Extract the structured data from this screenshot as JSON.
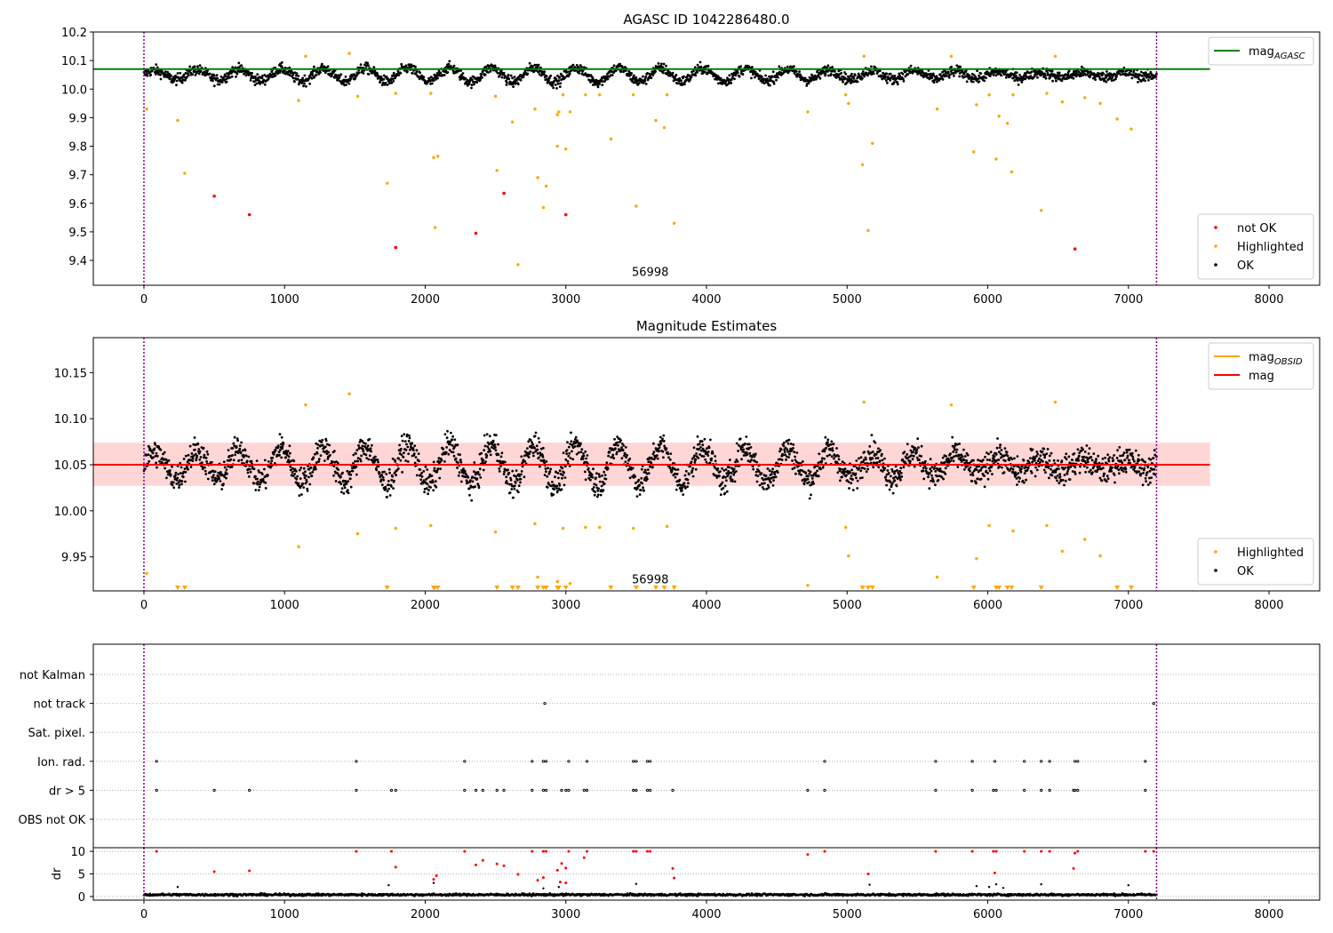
{
  "colors": {
    "ok": "#000000",
    "not_ok": "#ff0000",
    "highlighted": "#ffa500",
    "agasc": "#008000",
    "obsid": "#ffa500",
    "mag": "#ff0000",
    "band": "#ffcccc",
    "obsid_boundary": "#800080",
    "grid": "#b0b0b0"
  },
  "chart_data": [
    {
      "type": "scatter",
      "title": "AGASC ID 1042286480.0",
      "xlabel": "",
      "ylabel": "",
      "xlim": [
        -360,
        8360
      ],
      "ylim": [
        9.313,
        10.2
      ],
      "x_ticks": [
        0,
        1000,
        2000,
        3000,
        4000,
        5000,
        6000,
        7000,
        8000
      ],
      "y_ticks": [
        9.4,
        9.5,
        9.6,
        9.7,
        9.8,
        9.9,
        10.0,
        10.1,
        10.2
      ],
      "y_tick_labels": [
        "9.4",
        "9.5",
        "9.6",
        "9.7",
        "9.8",
        "9.9",
        "10.0",
        "10.1",
        "10.2"
      ],
      "obsid_boundaries": [
        0,
        7200
      ],
      "obsid_labels": [
        {
          "x": 3600,
          "y": 9.345,
          "text": "56998"
        }
      ],
      "ok_series": {
        "name": "OK",
        "x_range": [
          0,
          7200
        ],
        "baseline": 10.05,
        "scatter": 0.022,
        "oscillation": 0.025,
        "period": 300,
        "count": 2400
      },
      "lines": [
        {
          "name": "mag",
          "subscript": "AGASC",
          "y": 10.07,
          "x_range": [
            -360,
            7580
          ]
        }
      ],
      "band": null,
      "legends": [
        {
          "position": "upper right",
          "entries": [
            {
              "kind": "line",
              "label": "mag",
              "subscript": "AGASC"
            }
          ]
        },
        {
          "position": "lower right",
          "entries": [
            {
              "kind": "dot",
              "label": "not OK"
            },
            {
              "kind": "dot",
              "label": "Highlighted"
            },
            {
              "kind": "dot",
              "label": "OK"
            }
          ]
        }
      ],
      "not_ok_points": [
        [
          500,
          9.625
        ],
        [
          750,
          9.56
        ],
        [
          1790,
          9.445
        ],
        [
          2360,
          9.495
        ],
        [
          2560,
          9.635
        ],
        [
          3000,
          9.56
        ],
        [
          6620,
          9.44
        ]
      ],
      "highlighted_points": [
        [
          20,
          9.93
        ],
        [
          240,
          9.89
        ],
        [
          290,
          9.705
        ],
        [
          1100,
          9.96
        ],
        [
          1150,
          10.115
        ],
        [
          1460,
          10.125
        ],
        [
          1520,
          9.975
        ],
        [
          1730,
          9.67
        ],
        [
          1790,
          9.985
        ],
        [
          2040,
          9.985
        ],
        [
          2060,
          9.76
        ],
        [
          2070,
          9.515
        ],
        [
          2090,
          9.765
        ],
        [
          2500,
          9.975
        ],
        [
          2510,
          9.715
        ],
        [
          2620,
          9.885
        ],
        [
          2660,
          9.385
        ],
        [
          2780,
          9.93
        ],
        [
          2800,
          9.69
        ],
        [
          2840,
          9.585
        ],
        [
          2860,
          9.66
        ],
        [
          2940,
          9.8
        ],
        [
          2940,
          9.91
        ],
        [
          2950,
          9.92
        ],
        [
          2980,
          9.98
        ],
        [
          3000,
          9.79
        ],
        [
          3030,
          9.92
        ],
        [
          3140,
          9.98
        ],
        [
          3240,
          9.98
        ],
        [
          3320,
          9.825
        ],
        [
          3480,
          9.98
        ],
        [
          3500,
          9.59
        ],
        [
          3640,
          9.89
        ],
        [
          3700,
          9.865
        ],
        [
          3720,
          9.98
        ],
        [
          3770,
          9.53
        ],
        [
          4720,
          9.92
        ],
        [
          4990,
          9.98
        ],
        [
          5010,
          9.95
        ],
        [
          5110,
          9.735
        ],
        [
          5120,
          10.115
        ],
        [
          5150,
          9.505
        ],
        [
          5180,
          9.81
        ],
        [
          5640,
          9.93
        ],
        [
          5740,
          10.115
        ],
        [
          5900,
          9.78
        ],
        [
          5920,
          9.945
        ],
        [
          6010,
          9.98
        ],
        [
          6060,
          9.755
        ],
        [
          6080,
          9.905
        ],
        [
          6140,
          9.88
        ],
        [
          6170,
          9.71
        ],
        [
          6180,
          9.98
        ],
        [
          6380,
          9.575
        ],
        [
          6420,
          9.985
        ],
        [
          6480,
          10.115
        ],
        [
          6530,
          9.955
        ],
        [
          6690,
          9.97
        ],
        [
          6800,
          9.95
        ],
        [
          6920,
          9.895
        ],
        [
          7020,
          9.86
        ]
      ]
    },
    {
      "type": "scatter",
      "title": "Magnitude Estimates",
      "xlabel": "",
      "ylabel": "",
      "xlim": [
        -360,
        8360
      ],
      "ylim": [
        9.913,
        10.188
      ],
      "x_ticks": [
        0,
        1000,
        2000,
        3000,
        4000,
        5000,
        6000,
        7000,
        8000
      ],
      "y_ticks": [
        9.95,
        10.0,
        10.05,
        10.1,
        10.15
      ],
      "y_tick_labels": [
        "9.95",
        "10.00",
        "10.05",
        "10.10",
        "10.15"
      ],
      "obsid_boundaries": [
        0,
        7200
      ],
      "obsid_labels": [
        {
          "x": 3600,
          "y": 9.921,
          "text": "56998"
        }
      ],
      "ok_series": {
        "name": "OK",
        "x_range": [
          0,
          7200
        ],
        "baseline": 10.05,
        "scatter": 0.018,
        "oscillation": 0.022,
        "period": 300,
        "count": 2600
      },
      "lines": [
        {
          "name": "mag",
          "subscript": "OBSID",
          "y": 10.05,
          "x_range": [
            -360,
            7200
          ],
          "color_key": "obsid"
        },
        {
          "name": "mag",
          "subscript": "",
          "y": 10.05,
          "x_range": [
            -360,
            7580
          ],
          "color_key": "mag"
        }
      ],
      "band": {
        "y_range": [
          10.027,
          10.074
        ],
        "x_range": [
          -360,
          7580
        ]
      },
      "legends": [
        {
          "position": "upper right",
          "entries": [
            {
              "kind": "line",
              "label": "mag",
              "subscript": "OBSID",
              "color_key": "obsid"
            },
            {
              "kind": "line",
              "label": "mag",
              "subscript": "",
              "color_key": "mag"
            }
          ]
        },
        {
          "position": "lower right",
          "entries": [
            {
              "kind": "dot",
              "label": "Highlighted"
            },
            {
              "kind": "dot",
              "label": "OK"
            }
          ]
        }
      ],
      "not_ok_points": [],
      "highlighted_points": [
        [
          20,
          9.932
        ],
        [
          1100,
          9.961
        ],
        [
          1150,
          10.115
        ],
        [
          1460,
          10.127
        ],
        [
          1520,
          9.975
        ],
        [
          1790,
          9.981
        ],
        [
          2040,
          9.984
        ],
        [
          2500,
          9.977
        ],
        [
          2780,
          9.986
        ],
        [
          2800,
          9.928
        ],
        [
          2940,
          9.923
        ],
        [
          2980,
          9.981
        ],
        [
          3030,
          9.921
        ],
        [
          3140,
          9.982
        ],
        [
          3240,
          9.982
        ],
        [
          3480,
          9.981
        ],
        [
          3720,
          9.983
        ],
        [
          4720,
          9.919
        ],
        [
          4990,
          9.982
        ],
        [
          5010,
          9.951
        ],
        [
          5120,
          10.118
        ],
        [
          5640,
          9.928
        ],
        [
          5740,
          10.115
        ],
        [
          5920,
          9.948
        ],
        [
          6010,
          9.984
        ],
        [
          6180,
          9.978
        ],
        [
          6420,
          9.984
        ],
        [
          6480,
          10.118
        ],
        [
          6530,
          9.956
        ],
        [
          6690,
          9.969
        ],
        [
          6800,
          9.951
        ]
      ],
      "clipped_below": [
        240,
        290,
        1730,
        2060,
        2070,
        2090,
        2510,
        2620,
        2660,
        2800,
        2840,
        2860,
        2940,
        2950,
        3000,
        3320,
        3500,
        3640,
        3700,
        3770,
        5110,
        5150,
        5180,
        5900,
        6060,
        6080,
        6140,
        6170,
        6380,
        6920,
        7020
      ]
    }
  ],
  "flags_panel": {
    "categories": [
      "not Kalman",
      "not track",
      "Sat. pixel.",
      "Ion. rad.",
      "dr > 5",
      "OBS not OK"
    ],
    "x_ticks": [
      0,
      1000,
      2000,
      3000,
      4000,
      5000,
      6000,
      7000,
      8000
    ],
    "flags": {
      "not Kalman": [],
      "not track": [
        2850,
        7180
      ],
      "Sat. pixel.": [],
      "Ion. rad.": [
        90,
        1510,
        2280,
        2760,
        2840,
        2860,
        3020,
        3150,
        3480,
        3500,
        3580,
        3600,
        4840,
        5630,
        5890,
        6050,
        6260,
        6380,
        6440,
        6620,
        6640,
        7120
      ],
      "dr > 5": [
        90,
        500,
        750,
        1510,
        1760,
        1790,
        2280,
        2360,
        2410,
        2510,
        2560,
        2760,
        2840,
        2860,
        2970,
        3000,
        3020,
        3130,
        3150,
        3480,
        3500,
        3580,
        3600,
        3760,
        4720,
        4840,
        5630,
        5890,
        6040,
        6060,
        6260,
        6380,
        6440,
        6610,
        6620,
        6640,
        7120
      ],
      "OBS not OK": []
    }
  },
  "dr_panel": {
    "ylabel": "dr",
    "y_ticks": [
      0,
      5,
      10
    ],
    "ylim": [
      -0.8,
      10.8
    ],
    "ok_count": 1800,
    "ok_level": 0.4,
    "ok_scatter": 0.35,
    "red_points": [
      [
        90,
        10
      ],
      [
        500,
        5.5
      ],
      [
        750,
        5.7
      ],
      [
        1510,
        10
      ],
      [
        1760,
        10
      ],
      [
        1790,
        6.5
      ],
      [
        2060,
        3.8
      ],
      [
        2080,
        4.6
      ],
      [
        2280,
        10
      ],
      [
        2360,
        7
      ],
      [
        2410,
        8
      ],
      [
        2510,
        7.2
      ],
      [
        2560,
        6.8
      ],
      [
        2660,
        4.9
      ],
      [
        2760,
        10
      ],
      [
        2800,
        3.6
      ],
      [
        2840,
        10
      ],
      [
        2860,
        10
      ],
      [
        2840,
        4.2
      ],
      [
        2940,
        5.8
      ],
      [
        2960,
        3.2
      ],
      [
        2970,
        7.3
      ],
      [
        3000,
        6.3
      ],
      [
        3000,
        3
      ],
      [
        3020,
        10
      ],
      [
        3130,
        8.6
      ],
      [
        3150,
        10
      ],
      [
        3480,
        10
      ],
      [
        3500,
        10
      ],
      [
        3580,
        10
      ],
      [
        3600,
        10
      ],
      [
        3760,
        6.2
      ],
      [
        3770,
        4.1
      ],
      [
        4720,
        9.3
      ],
      [
        4840,
        10
      ],
      [
        5150,
        5
      ],
      [
        5630,
        10
      ],
      [
        5890,
        10
      ],
      [
        6040,
        10
      ],
      [
        6050,
        5.2
      ],
      [
        6060,
        10
      ],
      [
        6260,
        10
      ],
      [
        6380,
        10
      ],
      [
        6440,
        10
      ],
      [
        6610,
        6.2
      ],
      [
        6620,
        9.6
      ],
      [
        6640,
        10
      ],
      [
        7120,
        10
      ],
      [
        7180,
        10
      ]
    ],
    "black_points": [
      [
        240,
        2.1
      ],
      [
        1740,
        2.5
      ],
      [
        2060,
        3
      ],
      [
        2840,
        1.8
      ],
      [
        2950,
        2.1
      ],
      [
        3500,
        2.8
      ],
      [
        5160,
        2.6
      ],
      [
        5920,
        2.3
      ],
      [
        6010,
        2.1
      ],
      [
        6060,
        2.7
      ],
      [
        6110,
        1.9
      ],
      [
        6380,
        2.7
      ],
      [
        7000,
        2.5
      ]
    ]
  }
}
